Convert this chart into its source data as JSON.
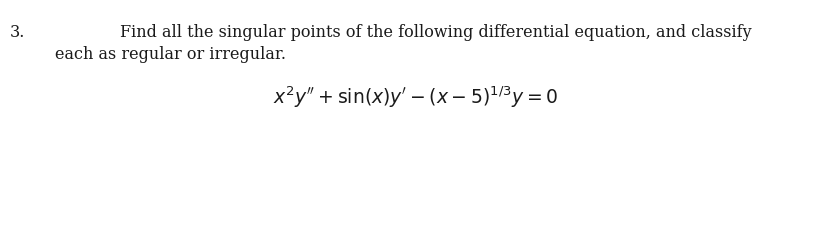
{
  "number": "3.",
  "text_line1": "Find all the singular points of the following differential equation, and classify",
  "text_line2": "each as regular or irregular.",
  "equation": "$x^2y'' + \\sin(x)y' - (x - 5)^{1/3}y = 0$",
  "bg_color": "#ffffff",
  "text_color": "#1a1a1a",
  "text_fontsize": 11.5,
  "eq_fontsize": 13.5,
  "number_fontsize": 11.5
}
